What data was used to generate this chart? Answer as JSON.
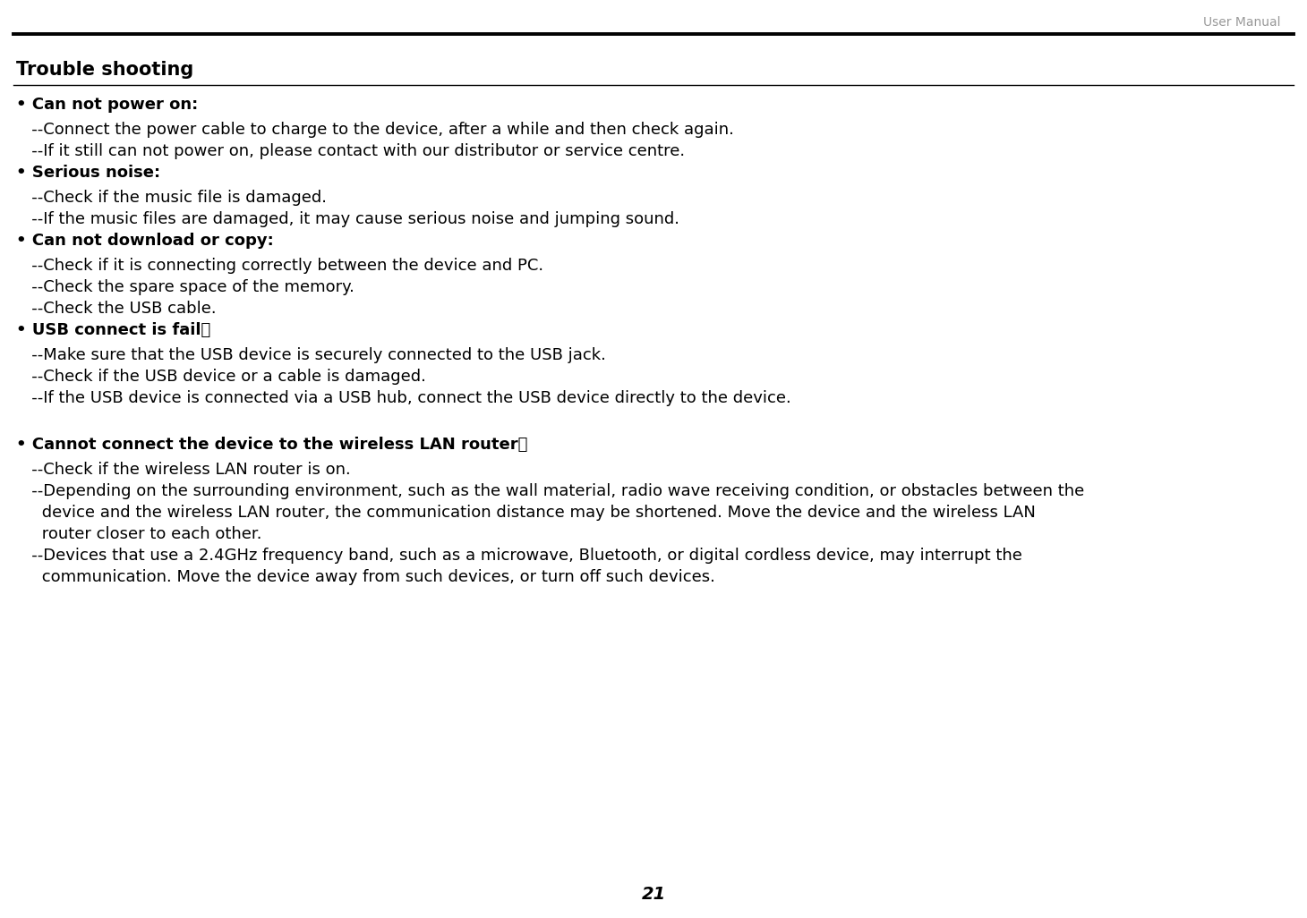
{
  "bg_color": "#ffffff",
  "header_text": "User Manual",
  "header_color": "#999999",
  "header_fontsize": 10,
  "title": "Trouble shooting",
  "title_fontsize": 15,
  "page_number": "21",
  "page_number_fontsize": 14,
  "body_fontsize": 13,
  "sections": [
    {
      "bullet": "• Can not power on:",
      "items": [
        "   --Connect the power cable to charge to the device, after a while and then check again.",
        "   --If it still can not power on, please contact with our distributor or service centre."
      ]
    },
    {
      "bullet": "• Serious noise:",
      "items": [
        "   --Check if the music file is damaged.",
        "   --If the music files are damaged, it may cause serious noise and jumping sound."
      ]
    },
    {
      "bullet": "• Can not download or copy:",
      "items": [
        "   --Check if it is connecting correctly between the device and PC.",
        "   --Check the spare space of the memory.",
        "   --Check the USB cable."
      ]
    },
    {
      "bullet": "• USB connect is fail：",
      "items": [
        "   --Make sure that the USB device is securely connected to the USB jack.",
        "   --Check if the USB device or a cable is damaged.",
        "   --If the USB device is connected via a USB hub, connect the USB device directly to the device."
      ]
    },
    {
      "bullet": "",
      "items": []
    },
    {
      "bullet": "• Cannot connect the device to the wireless LAN router：",
      "items": [
        "   --Check if the wireless LAN router is on.",
        "   --Depending on the surrounding environment, such as the wall material, radio wave receiving condition, or obstacles between the",
        "     device and the wireless LAN router, the communication distance may be shortened. Move the device and the wireless LAN",
        "     router closer to each other.",
        "   --Devices that use a 2.4GHz frequency band, such as a microwave, Bluetooth, or digital cordless device, may interrupt the",
        "     communication. Move the device away from such devices, or turn off such devices."
      ]
    }
  ]
}
